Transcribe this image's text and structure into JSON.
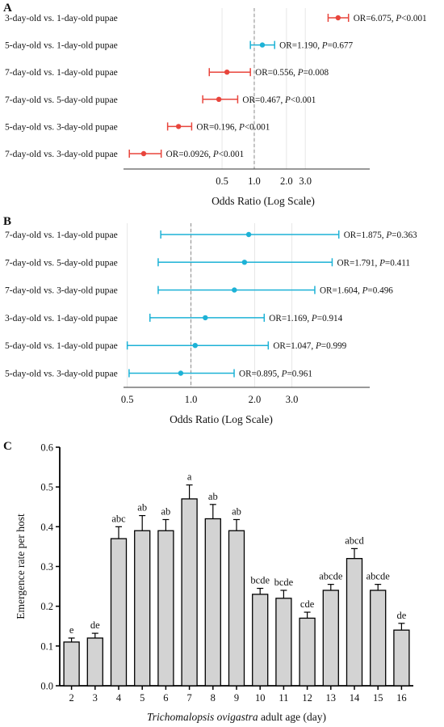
{
  "chart_data": [
    {
      "type": "forest",
      "panel": "A",
      "xlabel": "Odds Ratio (Log Scale)",
      "xscale": "log",
      "reference_line": 1.0,
      "xticks": [
        "0.5",
        "1.0",
        "2.0",
        "3.0"
      ],
      "xtick_values": [
        0.5,
        1.0,
        2.0,
        3.0
      ],
      "xlim": [
        0.06,
        12
      ],
      "rows": [
        {
          "label": "3-day-old vs. 1-day-old pupae",
          "or": 6.075,
          "lo": 4.9,
          "hi": 7.6,
          "stat_or": "OR=6.075, ",
          "stat_p": "P",
          "stat_pval": "<0.001",
          "color": "#E8453C"
        },
        {
          "label": "5-day-old vs. 1-day-old pupae",
          "or": 1.19,
          "lo": 0.92,
          "hi": 1.55,
          "stat_or": "OR=1.190, ",
          "stat_p": "P",
          "stat_pval": "=0.677",
          "color": "#1DB2D6"
        },
        {
          "label": "7-day-old vs. 1-day-old pupae",
          "or": 0.556,
          "lo": 0.38,
          "hi": 0.92,
          "stat_or": "OR=0.556, ",
          "stat_p": "P",
          "stat_pval": "=0.008",
          "color": "#E8453C"
        },
        {
          "label": "7-day-old vs. 5-day-old pupae",
          "or": 0.467,
          "lo": 0.33,
          "hi": 0.7,
          "stat_or": "OR=0.467, ",
          "stat_p": "P",
          "stat_pval": "<0.001",
          "color": "#E8453C"
        },
        {
          "label": "5-day-old vs. 3-day-old pupae",
          "or": 0.196,
          "lo": 0.155,
          "hi": 0.26,
          "stat_or": "OR=0.196, ",
          "stat_p": "P",
          "stat_pval": "<0.001",
          "color": "#E8453C"
        },
        {
          "label": "7-day-old vs. 3-day-old pupae",
          "or": 0.0926,
          "lo": 0.068,
          "hi": 0.135,
          "stat_or": "OR=0.0926, ",
          "stat_p": "P",
          "stat_pval": "<0.001",
          "color": "#E8453C"
        }
      ]
    },
    {
      "type": "forest",
      "panel": "B",
      "xlabel": "Odds Ratio (Log Scale)",
      "xscale": "log",
      "reference_line": 1.0,
      "xticks": [
        "0.5",
        "1.0",
        "2.0",
        "3.0"
      ],
      "xtick_values": [
        0.5,
        1.0,
        2.0,
        3.0
      ],
      "xlim": [
        0.48,
        7.0
      ],
      "rows": [
        {
          "label": "7-day-old vs. 1-day-old pupae",
          "or": 1.875,
          "lo": 0.72,
          "hi": 5.0,
          "stat_or": "OR=1.875, ",
          "stat_p": "P",
          "stat_pval": "=0.363",
          "color": "#1DB2D6"
        },
        {
          "label": "7-day-old vs. 5-day-old pupae",
          "or": 1.791,
          "lo": 0.7,
          "hi": 4.65,
          "stat_or": "OR=1.791, ",
          "stat_p": "P",
          "stat_pval": "=0.411",
          "color": "#1DB2D6"
        },
        {
          "label": "7-day-old vs. 3-day-old pupae",
          "or": 1.604,
          "lo": 0.7,
          "hi": 3.85,
          "stat_or": "OR=1.604, ",
          "stat_p": "P",
          "stat_pval": "=0.496",
          "color": "#1DB2D6"
        },
        {
          "label": "3-day-old vs. 1-day-old pupae",
          "or": 1.169,
          "lo": 0.64,
          "hi": 2.22,
          "stat_or": "OR=1.169, ",
          "stat_p": "P",
          "stat_pval": "=0.914",
          "color": "#1DB2D6"
        },
        {
          "label": "5-day-old vs. 1-day-old pupae",
          "or": 1.047,
          "lo": 0.5,
          "hi": 2.32,
          "stat_or": "OR=1.047, ",
          "stat_p": "P",
          "stat_pval": "=0.999",
          "color": "#1DB2D6"
        },
        {
          "label": "5-day-old vs. 3-day-old pupae",
          "or": 0.895,
          "lo": 0.51,
          "hi": 1.6,
          "stat_or": "OR=0.895, ",
          "stat_p": "P",
          "stat_pval": "=0.961",
          "color": "#1DB2D6"
        }
      ]
    },
    {
      "type": "bar",
      "panel": "C",
      "categories": [
        "2",
        "3",
        "4",
        "5",
        "6",
        "7",
        "8",
        "9",
        "10",
        "11",
        "12",
        "13",
        "14",
        "15",
        "16"
      ],
      "values": [
        0.11,
        0.12,
        0.37,
        0.39,
        0.39,
        0.47,
        0.42,
        0.39,
        0.23,
        0.22,
        0.17,
        0.24,
        0.32,
        0.24,
        0.14
      ],
      "errors": [
        0.01,
        0.012,
        0.03,
        0.038,
        0.028,
        0.035,
        0.036,
        0.028,
        0.015,
        0.02,
        0.015,
        0.015,
        0.025,
        0.015,
        0.017
      ],
      "letters": [
        "e",
        "de",
        "abc",
        "ab",
        "ab",
        "a",
        "ab",
        "ab",
        "bcde",
        "bcde",
        "cde",
        "abcde",
        "abcd",
        "abcde",
        "de"
      ],
      "ylabel": "Emergence rate per host",
      "xlabel_italic": "Trichomalopsis ovigastra",
      "xlabel_rest": " adult age (day)",
      "ylim": [
        0,
        0.6
      ],
      "yticks": [
        "0.0",
        "0.1",
        "0.2",
        "0.3",
        "0.4",
        "0.5",
        "0.6"
      ],
      "bar_color": "#D3D3D3"
    }
  ]
}
